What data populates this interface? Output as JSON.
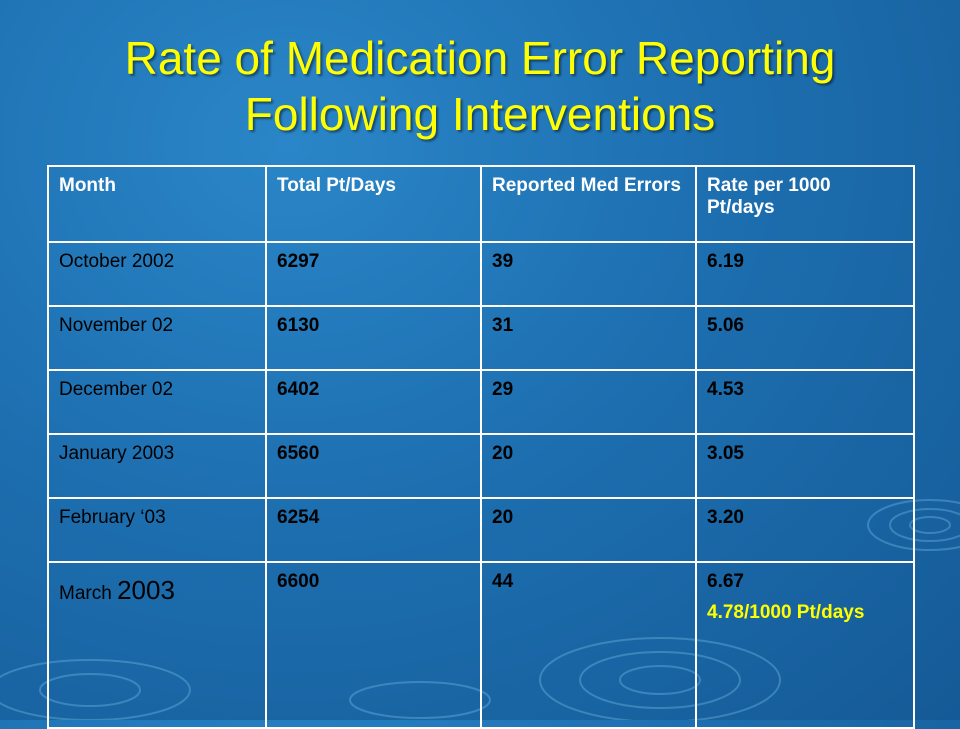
{
  "slide": {
    "title_line1": "Rate of Medication Error Reporting",
    "title_line2": "Following Interventions",
    "accent_title_color": "#ffff00",
    "background_color": "#1d6fb0"
  },
  "table": {
    "headers": [
      "Month",
      "Total Pt/Days",
      "Reported Med Errors",
      "Rate per 1000 Pt/days"
    ],
    "rows": [
      {
        "month": "October 2002",
        "total": "6297",
        "errors": "39",
        "rate": "6.19"
      },
      {
        "month": "November 02",
        "total": "6130",
        "errors": "31",
        "rate": "5.06"
      },
      {
        "month": "December 02",
        "total": "6402",
        "errors": "29",
        "rate": "4.53"
      },
      {
        "month": "January 2003",
        "total": "6560",
        "errors": "20",
        "rate": "3.05"
      },
      {
        "month": "February ‘03",
        "total": "6254",
        "errors": "20",
        "rate": "3.20"
      },
      {
        "month_prefix": "March ",
        "month_year": "2003",
        "total": "6600",
        "errors": "44",
        "rate": "6.67",
        "average_note": "4.78/1000 Pt/days"
      }
    ]
  }
}
